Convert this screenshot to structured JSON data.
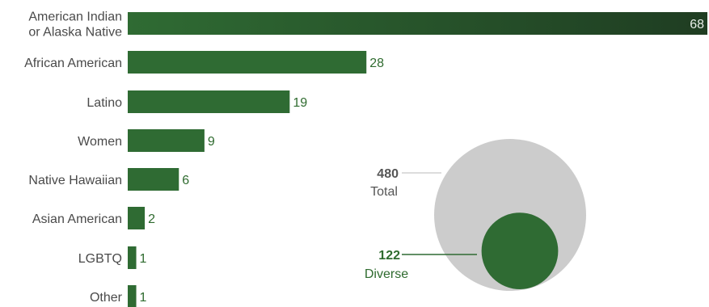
{
  "chart_data": [
    {
      "type": "bar",
      "orientation": "horizontal",
      "categories": [
        [
          "American Indian",
          "or Alaska Native"
        ],
        [
          "African American"
        ],
        [
          "Latino"
        ],
        [
          "Women"
        ],
        [
          "Native Hawaiian"
        ],
        [
          "Asian American"
        ],
        [
          "LGBTQ"
        ],
        [
          "Other"
        ]
      ],
      "values": [
        68,
        28,
        19,
        9,
        6,
        2,
        1,
        1
      ],
      "xlim": [
        0,
        68
      ],
      "grid": false,
      "legend": "none",
      "colors": {
        "bar": "#2f6b33",
        "bar_dark": "#1f3d22",
        "label": "#4a4a4a",
        "value": "#2f6b2f"
      }
    },
    {
      "type": "bubble",
      "items": [
        {
          "name": "Total",
          "value": 480,
          "value_label": "480",
          "color": "#cccccc",
          "label_color": "#555555",
          "line_color": "#b8b8b8"
        },
        {
          "name": "Diverse",
          "value": 122,
          "value_label": "122",
          "color": "#2f6b33",
          "label_color": "#2f6b2f",
          "line_color": "#2f6b33"
        }
      ]
    }
  ]
}
